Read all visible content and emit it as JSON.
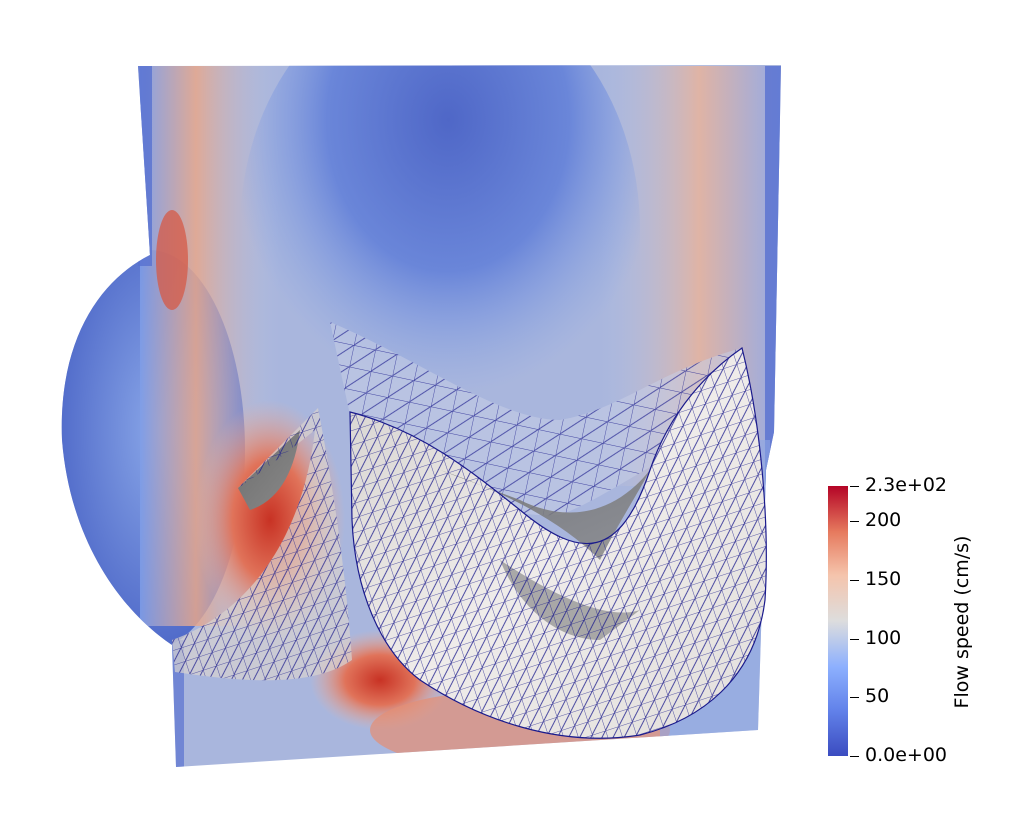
{
  "scalar_bar": {
    "title": "Flow speed (cm/s)",
    "max_label": "2.3e+02",
    "min_label": "0.0e+00",
    "ticks": [
      {
        "value": 230,
        "label": "2.3e+02"
      },
      {
        "value": 200,
        "label": "200"
      },
      {
        "value": 150,
        "label": "150"
      },
      {
        "value": 100,
        "label": "100"
      },
      {
        "value": 50,
        "label": "50"
      },
      {
        "value": 0,
        "label": "0.0e+00"
      }
    ],
    "range": [
      0,
      230
    ],
    "colormap": [
      "#3b4cc0",
      "#6f92f3",
      "#aac7fd",
      "#dddddd",
      "#f7b89c",
      "#e7745b",
      "#b40426"
    ]
  },
  "colors": {
    "mesh_edge": "#1a1a8c",
    "leaflet_light": "#e6e3e0",
    "leaflet_shadow": "#7a7a7a",
    "background": "#ffffff"
  }
}
